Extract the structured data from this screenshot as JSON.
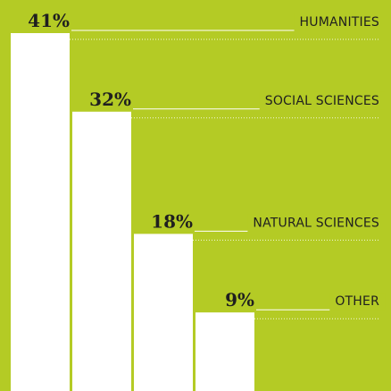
{
  "chart_data": {
    "type": "bar",
    "categories": [
      "HUMANITIES",
      "SOCIAL SCIENCES",
      "NATURAL SCIENCES",
      "OTHER"
    ],
    "values": [
      41,
      32,
      18,
      9
    ],
    "value_labels": [
      "41%",
      "32%",
      "18%",
      "9%"
    ],
    "ylim": [
      0,
      41
    ],
    "grid": false,
    "colors": {
      "background": "#b4cb25",
      "bar": "#ffffff",
      "text": "#1f1f1f",
      "leader_line": "#ffffff"
    }
  }
}
